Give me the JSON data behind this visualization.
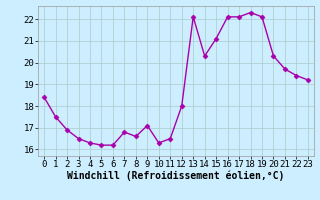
{
  "x": [
    0,
    1,
    2,
    3,
    4,
    5,
    6,
    7,
    8,
    9,
    10,
    11,
    12,
    13,
    14,
    15,
    16,
    17,
    18,
    19,
    20,
    21,
    22,
    23
  ],
  "y": [
    18.4,
    17.5,
    16.9,
    16.5,
    16.3,
    16.2,
    16.2,
    16.8,
    16.6,
    17.1,
    16.3,
    16.5,
    18.0,
    22.1,
    20.3,
    21.1,
    22.1,
    22.1,
    22.3,
    22.1,
    20.3,
    19.7,
    19.4,
    19.2
  ],
  "line_color": "#aa00aa",
  "marker": "D",
  "markersize": 2.5,
  "linewidth": 1.0,
  "background_color": "#cceeff",
  "grid_color": "#aacccc",
  "xlabel": "Windchill (Refroidissement éolien,°C)",
  "xlabel_fontsize": 7,
  "tick_fontsize": 6.5,
  "xlim": [
    -0.5,
    23.5
  ],
  "ylim": [
    15.7,
    22.6
  ],
  "yticks": [
    16,
    17,
    18,
    19,
    20,
    21,
    22
  ],
  "xticks": [
    0,
    1,
    2,
    3,
    4,
    5,
    6,
    7,
    8,
    9,
    10,
    11,
    12,
    13,
    14,
    15,
    16,
    17,
    18,
    19,
    20,
    21,
    22,
    23
  ]
}
